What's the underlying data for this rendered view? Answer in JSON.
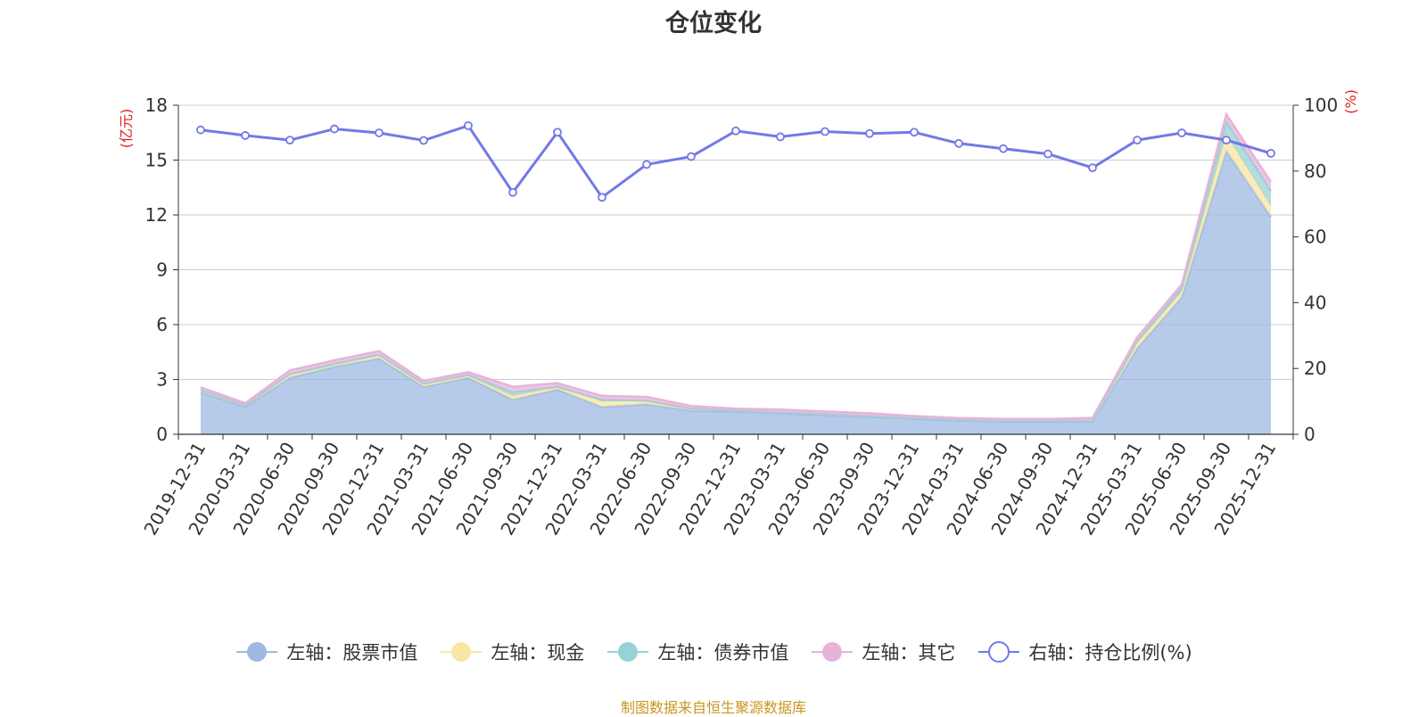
{
  "title": "仓位变化",
  "footer": "制图数据来自恒生聚源数据库",
  "legend": [
    {
      "label": "左轴：股票市值",
      "color": "#9eb9e3",
      "marker": "filled"
    },
    {
      "label": "左轴：现金",
      "color": "#f7e6a6",
      "marker": "filled"
    },
    {
      "label": "左轴：债券市值",
      "color": "#96d3d6",
      "marker": "filled"
    },
    {
      "label": "左轴：其它",
      "color": "#e6b4da",
      "marker": "filled"
    },
    {
      "label": "右轴：持仓比例(%)",
      "color": "#7378e8",
      "marker": "hollow"
    }
  ],
  "chart_data": {
    "type": "area",
    "categories": [
      "2019-12-31",
      "2020-03-31",
      "2020-06-30",
      "2020-09-30",
      "2020-12-31",
      "2021-03-31",
      "2021-06-30",
      "2021-09-30",
      "2021-12-31",
      "2022-03-31",
      "2022-06-30",
      "2022-09-30",
      "2022-12-31",
      "2023-03-31",
      "2023-06-30",
      "2023-09-30",
      "2023-12-31",
      "2024-03-31",
      "2024-06-30",
      "2024-09-30",
      "2024-12-31",
      "2025-03-31",
      "2025-06-30",
      "2025-09-30",
      "2025-12-31"
    ],
    "left_axis": {
      "unit": "(亿元)",
      "ylim": [
        0,
        18
      ],
      "ticks": [
        0,
        3,
        6,
        9,
        12,
        15,
        18
      ]
    },
    "right_axis": {
      "unit": "(%)",
      "ylim": [
        0,
        100
      ],
      "ticks": [
        0,
        20,
        40,
        60,
        80,
        100
      ]
    },
    "stacked_series": [
      {
        "name": "左轴：股票市值",
        "color": "#9eb9e3",
        "values": [
          2.3,
          1.5,
          3.1,
          3.7,
          4.15,
          2.6,
          3.1,
          1.9,
          2.45,
          1.5,
          1.65,
          1.3,
          1.25,
          1.15,
          1.05,
          0.95,
          0.85,
          0.75,
          0.7,
          0.7,
          0.7,
          4.7,
          7.5,
          15.5,
          11.9
        ]
      },
      {
        "name": "左轴：现金",
        "color": "#f7e6a6",
        "values": [
          0.12,
          0.08,
          0.15,
          0.15,
          0.2,
          0.12,
          0.1,
          0.2,
          0.15,
          0.3,
          0.2,
          0.1,
          0.05,
          0.05,
          0.05,
          0.05,
          0.05,
          0.04,
          0.04,
          0.04,
          0.05,
          0.3,
          0.3,
          0.9,
          0.6
        ]
      },
      {
        "name": "左轴：债券市值",
        "color": "#96d3d6",
        "values": [
          0,
          0,
          0.05,
          0,
          0,
          0.05,
          0.05,
          0.2,
          0,
          0.1,
          0,
          0,
          0,
          0,
          0,
          0,
          0,
          0,
          0,
          0,
          0,
          0.1,
          0.2,
          0.7,
          0.8
        ]
      },
      {
        "name": "左轴：其它",
        "color": "#e6b4da",
        "values": [
          0.15,
          0.12,
          0.2,
          0.2,
          0.2,
          0.15,
          0.15,
          0.3,
          0.2,
          0.2,
          0.2,
          0.15,
          0.1,
          0.15,
          0.15,
          0.15,
          0.1,
          0.1,
          0.1,
          0.1,
          0.15,
          0.2,
          0.2,
          0.4,
          0.5
        ]
      }
    ],
    "line_series": {
      "name": "右轴：持仓比例(%)",
      "color": "#7378e8",
      "values": [
        92.5,
        90.8,
        89.4,
        92.8,
        91.6,
        89.3,
        93.8,
        73.5,
        91.8,
        72,
        82,
        84.4,
        92.2,
        90.4,
        92,
        91.4,
        91.8,
        88.4,
        86.8,
        85.2,
        81,
        89.4,
        91.6,
        89.4,
        85.4
      ]
    }
  }
}
